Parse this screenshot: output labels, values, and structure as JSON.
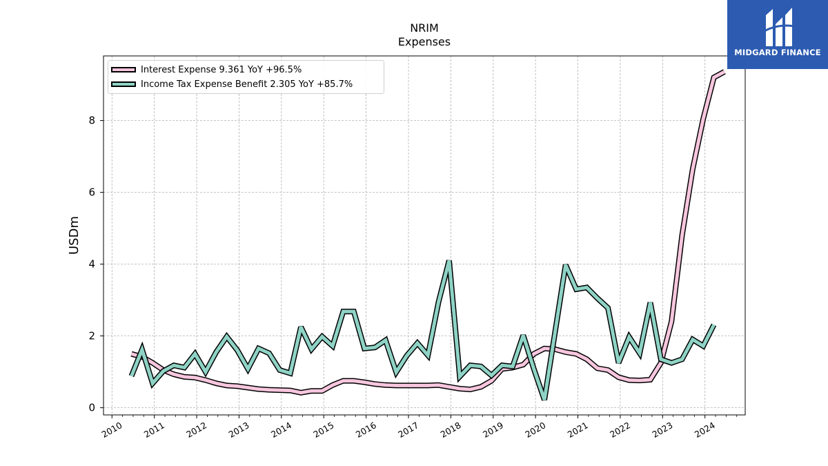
{
  "title": "NRIM",
  "subtitle": "Expenses",
  "logo": {
    "text": "MIDGARD FINANCE",
    "colors": {
      "background": "#2c5bb1",
      "text": "#ffffff"
    }
  },
  "chart_data": {
    "type": "line",
    "ylabel": "USDm",
    "xlabel": "",
    "ylim": [
      -0.2,
      9.8
    ],
    "xlim": [
      2009.8,
      2024.95
    ],
    "yticks": [
      0,
      2,
      4,
      6,
      8
    ],
    "xticks": [
      "2010",
      "2011",
      "2012",
      "2013",
      "2014",
      "2015",
      "2016",
      "2017",
      "2018",
      "2019",
      "2020",
      "2021",
      "2022",
      "2023",
      "2024"
    ],
    "grid": true,
    "legend_position": "top-left",
    "series": [
      {
        "name": "Interest Expense  9.361 YoY +96.5%",
        "color": "#f7c6de",
        "points": [
          [
            2010.46,
            1.5
          ],
          [
            2010.71,
            1.42
          ],
          [
            2010.96,
            1.25
          ],
          [
            2011.21,
            1.05
          ],
          [
            2011.46,
            0.93
          ],
          [
            2011.71,
            0.86
          ],
          [
            2011.96,
            0.84
          ],
          [
            2012.21,
            0.77
          ],
          [
            2012.46,
            0.68
          ],
          [
            2012.71,
            0.62
          ],
          [
            2012.96,
            0.6
          ],
          [
            2013.21,
            0.56
          ],
          [
            2013.46,
            0.52
          ],
          [
            2013.71,
            0.5
          ],
          [
            2013.96,
            0.49
          ],
          [
            2014.21,
            0.48
          ],
          [
            2014.46,
            0.42
          ],
          [
            2014.71,
            0.47
          ],
          [
            2014.96,
            0.47
          ],
          [
            2015.21,
            0.63
          ],
          [
            2015.46,
            0.75
          ],
          [
            2015.71,
            0.75
          ],
          [
            2015.96,
            0.71
          ],
          [
            2016.21,
            0.66
          ],
          [
            2016.46,
            0.63
          ],
          [
            2016.71,
            0.62
          ],
          [
            2016.96,
            0.62
          ],
          [
            2017.21,
            0.62
          ],
          [
            2017.46,
            0.62
          ],
          [
            2017.71,
            0.63
          ],
          [
            2017.96,
            0.58
          ],
          [
            2018.21,
            0.53
          ],
          [
            2018.46,
            0.51
          ],
          [
            2018.71,
            0.58
          ],
          [
            2018.96,
            0.75
          ],
          [
            2019.21,
            1.08
          ],
          [
            2019.46,
            1.12
          ],
          [
            2019.71,
            1.2
          ],
          [
            2019.96,
            1.5
          ],
          [
            2020.21,
            1.65
          ],
          [
            2020.46,
            1.63
          ],
          [
            2020.71,
            1.55
          ],
          [
            2020.96,
            1.5
          ],
          [
            2021.21,
            1.35
          ],
          [
            2021.46,
            1.1
          ],
          [
            2021.71,
            1.05
          ],
          [
            2021.96,
            0.85
          ],
          [
            2022.21,
            0.77
          ],
          [
            2022.46,
            0.76
          ],
          [
            2022.71,
            0.78
          ],
          [
            2022.96,
            1.25
          ],
          [
            2023.21,
            2.4
          ],
          [
            2023.46,
            4.8
          ],
          [
            2023.71,
            6.65
          ],
          [
            2023.96,
            8.05
          ],
          [
            2024.21,
            9.2
          ],
          [
            2024.46,
            9.36
          ]
        ]
      },
      {
        "name": "Income Tax Expense Benefit  2.305 YoY +85.7%",
        "color": "#8ed3c5",
        "points": [
          [
            2010.46,
            0.88
          ],
          [
            2010.71,
            1.62
          ],
          [
            2010.96,
            0.68
          ],
          [
            2011.21,
            1.02
          ],
          [
            2011.46,
            1.18
          ],
          [
            2011.71,
            1.12
          ],
          [
            2011.96,
            1.5
          ],
          [
            2012.21,
            1.0
          ],
          [
            2012.46,
            1.55
          ],
          [
            2012.71,
            1.98
          ],
          [
            2012.96,
            1.6
          ],
          [
            2013.21,
            1.08
          ],
          [
            2013.46,
            1.65
          ],
          [
            2013.71,
            1.52
          ],
          [
            2013.96,
            1.05
          ],
          [
            2014.21,
            0.96
          ],
          [
            2014.46,
            2.25
          ],
          [
            2014.71,
            1.63
          ],
          [
            2014.96,
            1.98
          ],
          [
            2015.21,
            1.72
          ],
          [
            2015.46,
            2.68
          ],
          [
            2015.71,
            2.68
          ],
          [
            2015.96,
            1.65
          ],
          [
            2016.21,
            1.68
          ],
          [
            2016.46,
            1.88
          ],
          [
            2016.71,
            0.99
          ],
          [
            2016.96,
            1.45
          ],
          [
            2017.21,
            1.8
          ],
          [
            2017.46,
            1.46
          ],
          [
            2017.71,
            2.95
          ],
          [
            2017.96,
            4.1
          ],
          [
            2018.21,
            0.87
          ],
          [
            2018.46,
            1.18
          ],
          [
            2018.71,
            1.15
          ],
          [
            2018.96,
            0.9
          ],
          [
            2019.21,
            1.18
          ],
          [
            2019.46,
            1.15
          ],
          [
            2019.71,
            2.02
          ],
          [
            2019.96,
            1.08
          ],
          [
            2020.21,
            0.22
          ],
          [
            2020.46,
            2.1
          ],
          [
            2020.71,
            3.98
          ],
          [
            2020.96,
            3.3
          ],
          [
            2021.21,
            3.35
          ],
          [
            2021.46,
            3.05
          ],
          [
            2021.71,
            2.78
          ],
          [
            2021.96,
            1.25
          ],
          [
            2022.21,
            1.97
          ],
          [
            2022.46,
            1.52
          ],
          [
            2022.71,
            2.93
          ],
          [
            2022.96,
            1.35
          ],
          [
            2023.21,
            1.25
          ],
          [
            2023.46,
            1.35
          ],
          [
            2023.71,
            1.9
          ],
          [
            2023.96,
            1.72
          ],
          [
            2024.21,
            2.31
          ]
        ]
      }
    ]
  }
}
